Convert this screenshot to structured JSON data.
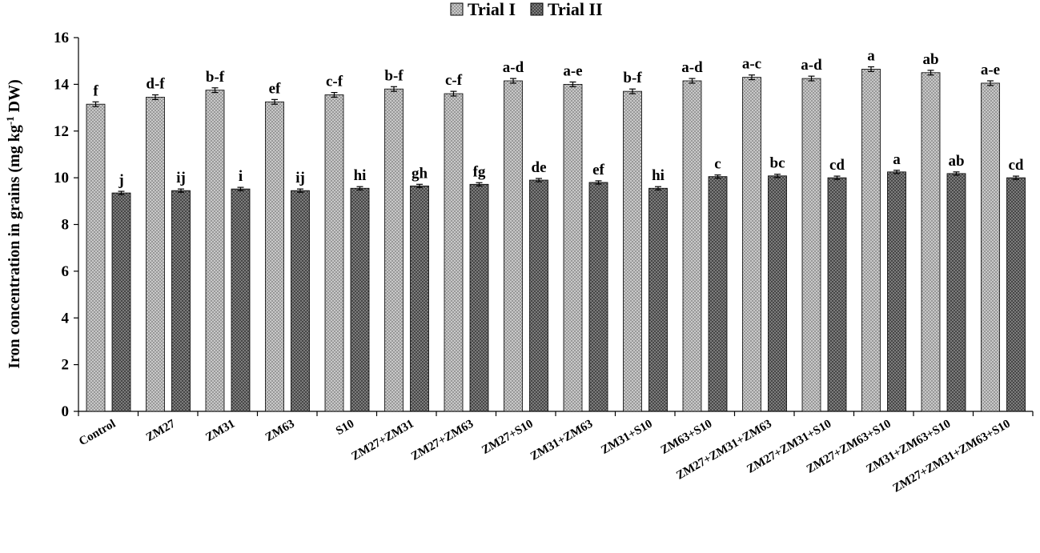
{
  "chart_data": {
    "type": "bar",
    "ylabel": "Iron concentration in grains (mg kg",
    "ylabel_sup": "-1",
    "ylabel_suffix": " DW)",
    "ylim": [
      0,
      16
    ],
    "yticks": [
      0,
      2,
      4,
      6,
      8,
      10,
      12,
      14,
      16
    ],
    "legend_position": "top-center",
    "grid": false,
    "categories": [
      "Control",
      "ZM27",
      "ZM31",
      "ZM63",
      "S10",
      "ZM27+ZM31",
      "ZM27+ZM63",
      "ZM27+S10",
      "ZM31+ZM63",
      "ZM31+S10",
      "ZM63+S10",
      "ZM27+ZM31+ZM63",
      "ZM27+ZM31+S10",
      "ZM27+ZM63+S10",
      "ZM31+ZM63+S10",
      "ZM27+ZM31+ZM63+S10"
    ],
    "series": [
      {
        "name": "Trial I",
        "color": "#bdbdbd",
        "values": [
          13.15,
          13.45,
          13.75,
          13.25,
          13.55,
          13.8,
          13.6,
          14.15,
          14.0,
          13.7,
          14.15,
          14.3,
          14.25,
          14.65,
          14.5,
          14.05
        ],
        "errors": [
          0.1,
          0.1,
          0.1,
          0.1,
          0.1,
          0.1,
          0.1,
          0.1,
          0.1,
          0.1,
          0.1,
          0.1,
          0.1,
          0.1,
          0.1,
          0.1
        ],
        "labels": [
          "f",
          "d-f",
          "b-f",
          "ef",
          "c-f",
          "b-f",
          "c-f",
          "a-d",
          "a-e",
          "b-f",
          "a-d",
          "a-c",
          "a-d",
          "a",
          "ab",
          "a-e"
        ]
      },
      {
        "name": "Trial II",
        "color": "#6f6f6f",
        "values": [
          9.35,
          9.45,
          9.52,
          9.45,
          9.55,
          9.65,
          9.72,
          9.9,
          9.8,
          9.55,
          10.05,
          10.08,
          10.0,
          10.25,
          10.18,
          10.0
        ],
        "errors": [
          0.07,
          0.07,
          0.07,
          0.07,
          0.07,
          0.07,
          0.07,
          0.07,
          0.07,
          0.07,
          0.07,
          0.07,
          0.07,
          0.07,
          0.07,
          0.07
        ],
        "labels": [
          "j",
          "ij",
          "i",
          "ij",
          "hi",
          "gh",
          "fg",
          "de",
          "ef",
          "hi",
          "c",
          "bc",
          "cd",
          "a",
          "ab",
          "cd"
        ]
      }
    ]
  }
}
